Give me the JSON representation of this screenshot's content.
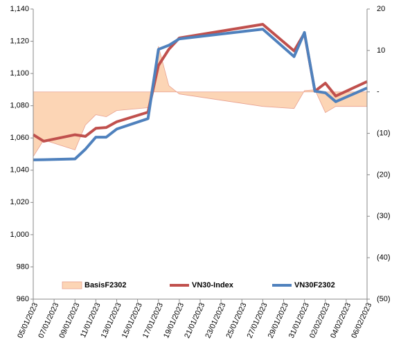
{
  "chart_data": {
    "type": "line",
    "x": [
      "05/01/2023",
      "06/01/2023",
      "09/01/2023",
      "10/01/2023",
      "11/01/2023",
      "12/01/2023",
      "13/01/2023",
      "16/01/2023",
      "17/01/2023",
      "18/01/2023",
      "19/01/2023",
      "27/01/2023",
      "30/01/2023",
      "31/01/2023",
      "01/02/2023",
      "02/02/2023",
      "03/02/2023",
      "06/02/2023"
    ],
    "xticks": [
      "05/01/2023",
      "07/01/2023",
      "09/01/2023",
      "11/01/2023",
      "13/01/2023",
      "15/01/2023",
      "17/01/2023",
      "19/01/2023",
      "21/01/2023",
      "23/01/2023",
      "25/01/2023",
      "27/01/2023",
      "29/01/2023",
      "31/01/2023",
      "02/02/2023",
      "04/02/2023",
      "06/02/2023"
    ],
    "series": [
      {
        "name": "BasisF2302",
        "type": "area",
        "axis": "y2",
        "color": "#fcd5b5",
        "values": [
          -15.6,
          -11.6,
          -14,
          -8,
          -5.5,
          -6,
          -4.5,
          -3.8,
          11,
          1.5,
          -0.5,
          -3.5,
          -4,
          0.3,
          0.5,
          -5,
          -3.5,
          -3.5
        ]
      },
      {
        "name": "VN30-Index",
        "type": "line",
        "color": "#c0504d",
        "values": [
          1062,
          1058,
          1062,
          1061,
          1066,
          1066.5,
          1070,
          1076,
          1105,
          1115,
          1122,
          1130.5,
          1114,
          1125,
          1089,
          1094,
          1086,
          1095
        ]
      },
      {
        "name": "VN30F2302",
        "type": "line",
        "color": "#4f81bd",
        "values": [
          1046.4,
          1046.5,
          1047,
          1053,
          1060.5,
          1060.5,
          1065.5,
          1072,
          1115,
          1117.5,
          1121.5,
          1127.5,
          1110.5,
          1125.5,
          1089,
          1088,
          1082.5,
          1091
        ]
      }
    ],
    "ylim": [
      960,
      1140
    ],
    "yticks": [
      {
        "value": 960,
        "label": "960"
      },
      {
        "value": 980,
        "label": "980"
      },
      {
        "value": 1000,
        "label": "1,000"
      },
      {
        "value": 1020,
        "label": "1,020"
      },
      {
        "value": 1040,
        "label": "1,040"
      },
      {
        "value": 1060,
        "label": "1,060"
      },
      {
        "value": 1080,
        "label": "1,080"
      },
      {
        "value": 1100,
        "label": "1,100"
      },
      {
        "value": 1120,
        "label": "1,120"
      },
      {
        "value": 1140,
        "label": "1,140"
      }
    ],
    "y2lim": [
      -50,
      20
    ],
    "y2ticks": [
      20,
      10,
      {
        "value": 0,
        "label": "-"
      },
      {
        "value": -10,
        "label": "(10)"
      },
      {
        "value": -20,
        "label": "(20)"
      },
      {
        "value": -30,
        "label": "(30)"
      },
      {
        "value": -40,
        "label": "(40)"
      },
      {
        "value": -50,
        "label": "(50)"
      }
    ],
    "grid": false,
    "legend": "bottom"
  }
}
